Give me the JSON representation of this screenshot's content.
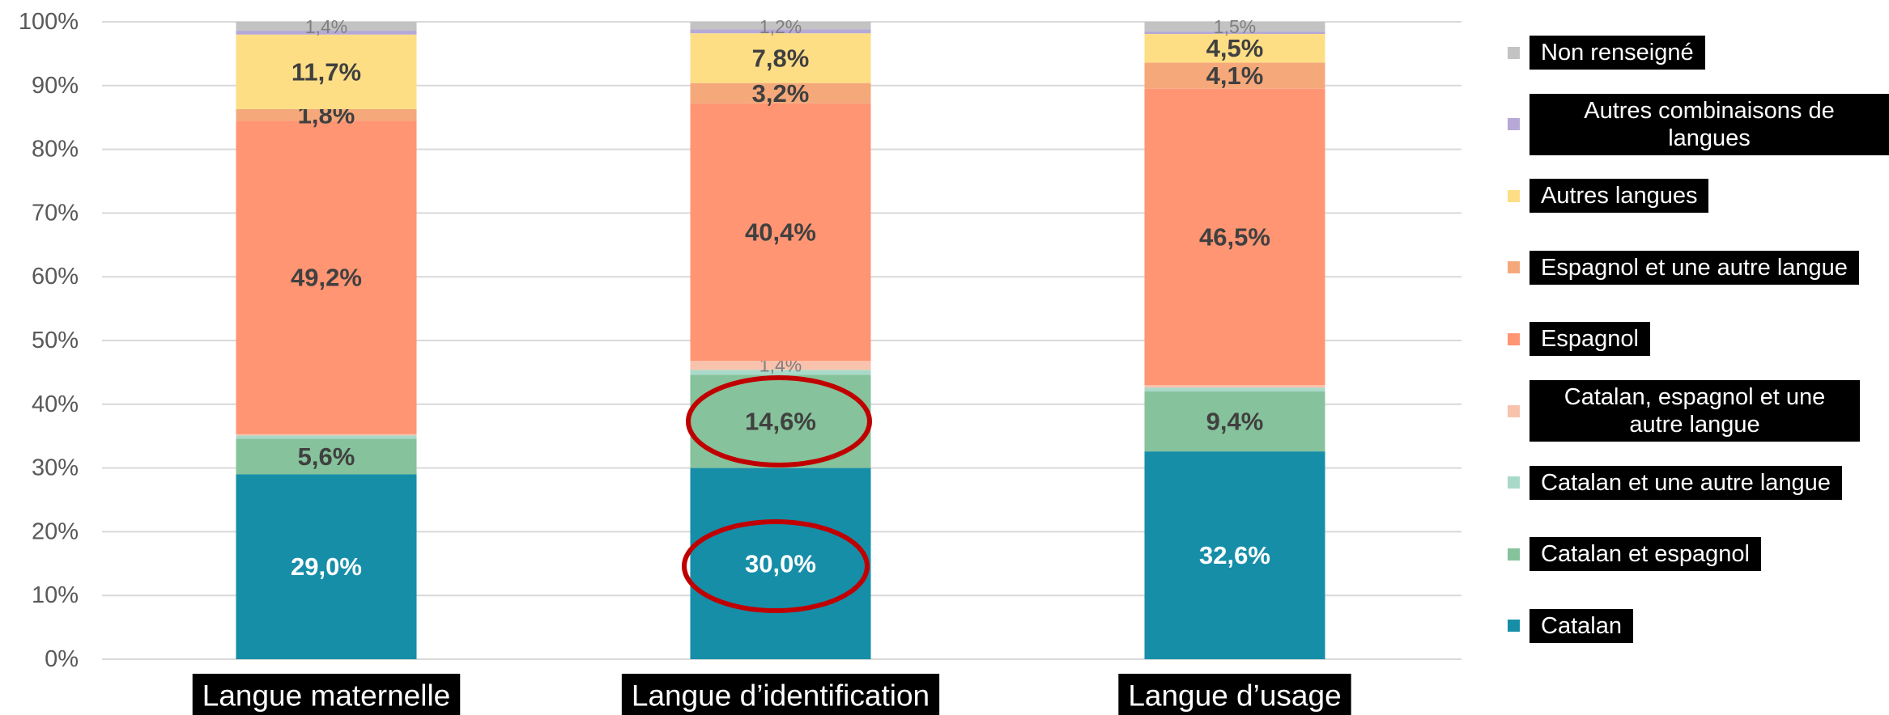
{
  "chart_data": {
    "type": "stacked_bar",
    "categories": [
      "Langue maternelle",
      "Langue d’identification",
      "Langue d’usage"
    ],
    "ylim": [
      0,
      100
    ],
    "yticks": [
      {
        "value": 0,
        "label": "0%"
      },
      {
        "value": 10,
        "label": "10%"
      },
      {
        "value": 20,
        "label": "20%"
      },
      {
        "value": 30,
        "label": "30%"
      },
      {
        "value": 40,
        "label": "40%"
      },
      {
        "value": 50,
        "label": "50%"
      },
      {
        "value": 60,
        "label": "60%"
      },
      {
        "value": 70,
        "label": "70%"
      },
      {
        "value": 80,
        "label": "80%"
      },
      {
        "value": 90,
        "label": "90%"
      },
      {
        "value": 100,
        "label": "100%"
      }
    ],
    "grid": true,
    "legend": "right",
    "series": [
      {
        "name": "Catalan",
        "color": "#168ea8",
        "values": [
          29.0,
          30.0,
          32.6
        ],
        "value_labels": [
          "29,0%",
          "30,0%",
          "32,6%"
        ]
      },
      {
        "name": "Catalan et espagnol",
        "color": "#86c29b",
        "values": [
          5.6,
          14.6,
          9.4
        ],
        "value_labels": [
          "5,6%",
          "14,6%",
          "9,4%"
        ]
      },
      {
        "name": "Catalan et une autre langue",
        "color": "#a9d9c9",
        "values": [
          0.5,
          0.8,
          0.6
        ],
        "value_labels": [
          null,
          null,
          null
        ]
      },
      {
        "name": "Catalan, espagnol et une autre langue",
        "color": "#f9c2ac",
        "values": [
          0.2,
          1.4,
          0.4
        ],
        "value_labels": [
          null,
          "1,4%",
          null
        ]
      },
      {
        "name": "Espagnol",
        "color": "#ff9573",
        "values": [
          49.2,
          40.4,
          46.5
        ],
        "value_labels": [
          "49,2%",
          "40,4%",
          "46,5%"
        ]
      },
      {
        "name": "Espagnol et une autre langue",
        "color": "#f5a97a",
        "values": [
          1.8,
          3.2,
          4.1
        ],
        "value_labels": [
          "1,8%",
          "3,2%",
          "4,1%"
        ]
      },
      {
        "name": "Autres langues",
        "color": "#fede85",
        "values": [
          11.7,
          7.8,
          4.5
        ],
        "value_labels": [
          "11,7%",
          "7,8%",
          "4,5%"
        ]
      },
      {
        "name": "Autres combinaisons de langues",
        "color": "#b6a9d6",
        "values": [
          0.6,
          0.6,
          0.4
        ],
        "value_labels": [
          null,
          null,
          null
        ]
      },
      {
        "name": "Non renseigné",
        "color": "#c3c3c3",
        "values": [
          1.4,
          1.2,
          1.5
        ],
        "value_labels": [
          "1,4%",
          "1,2%",
          "1,5%"
        ]
      }
    ]
  }
}
